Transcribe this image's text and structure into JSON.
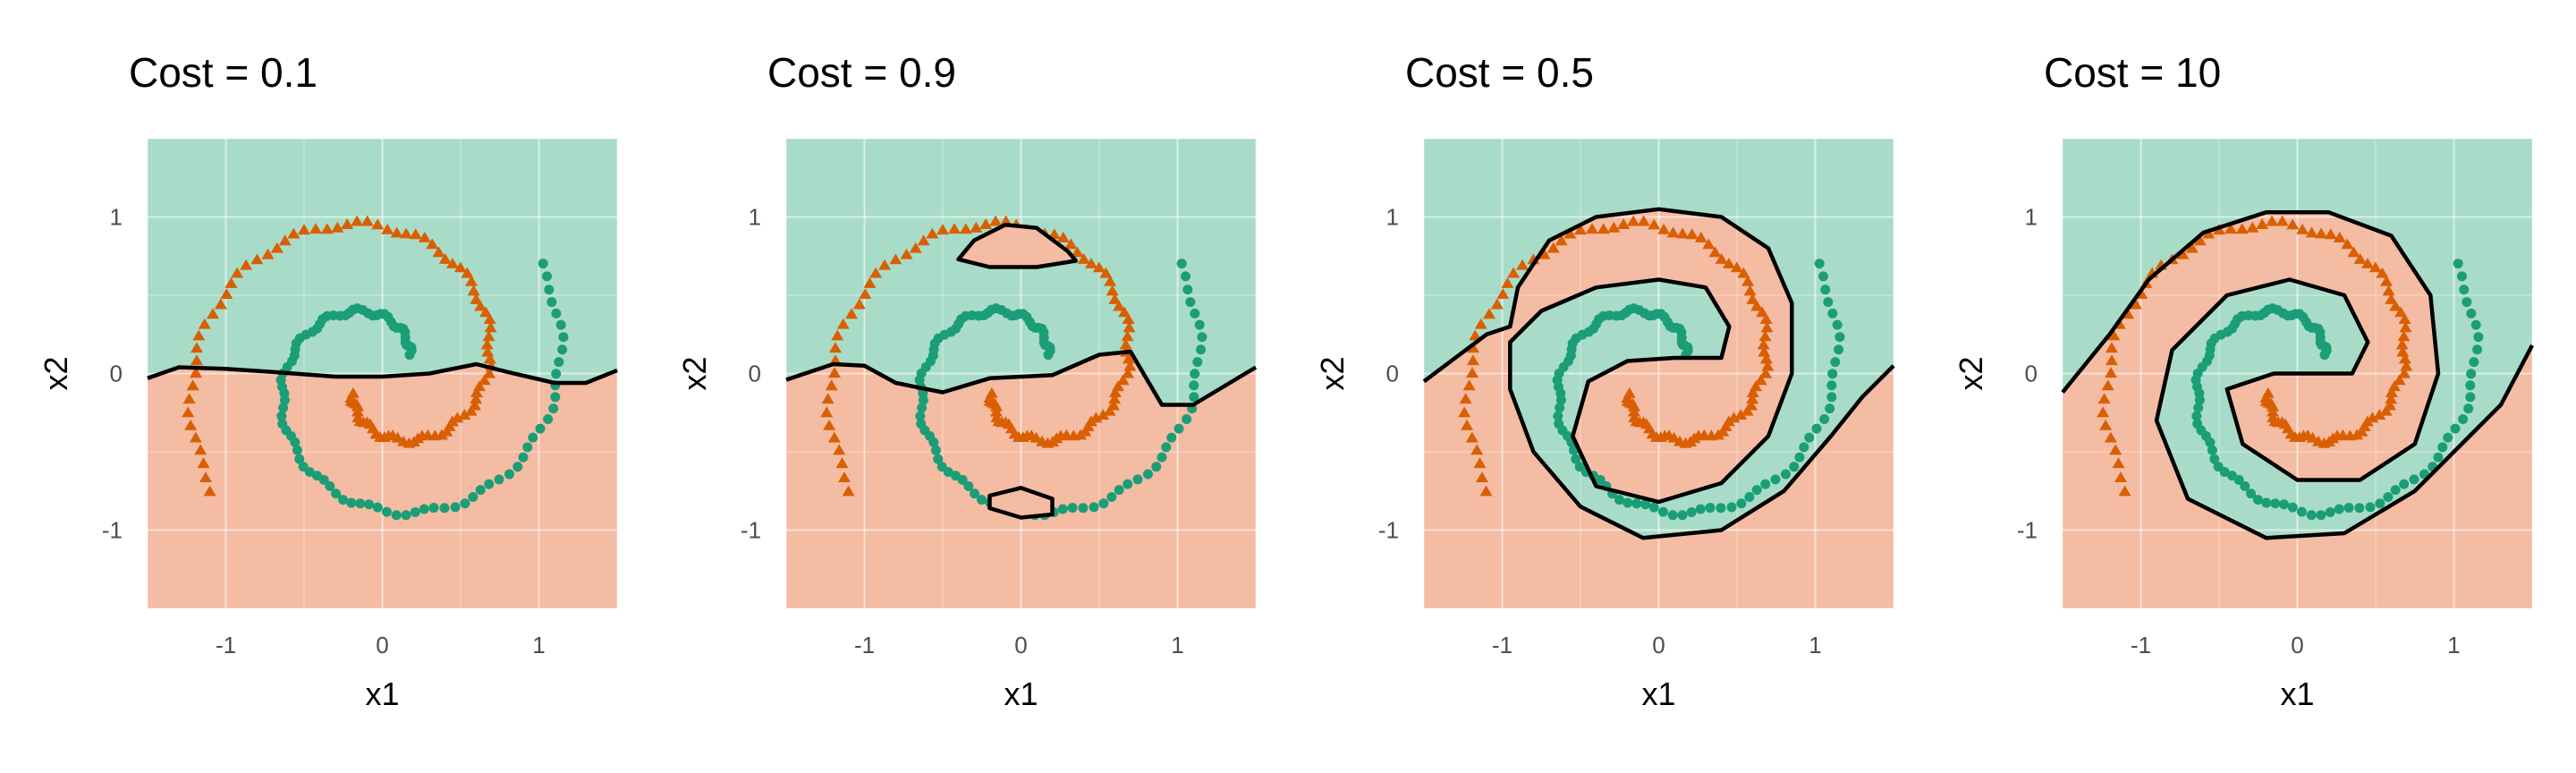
{
  "chart_data": [
    {
      "type": "scatter",
      "title": "Cost = 0.1",
      "xlabel": "x1",
      "ylabel": "x2",
      "xlim": [
        -1.5,
        1.5
      ],
      "ylim": [
        -1.5,
        1.5
      ],
      "x_ticks": [
        -1,
        0,
        1
      ],
      "y_ticks": [
        -1,
        0,
        1
      ],
      "grid": true,
      "classes": [
        {
          "marker": "circle",
          "color": "#1b9e77",
          "region_color": "#a9dcc8",
          "points": "spiral arm A (outer ring radius ~1.2, inner arm radius ~0.5)"
        },
        {
          "marker": "triangle",
          "color": "#d95f02",
          "region_color": "#f4bca3",
          "points": "spiral arm B (outer ring radius ~1.3, inner arm radius ~0.7)"
        }
      ],
      "decision_boundary": [
        [
          -1.5,
          -0.03
        ],
        [
          -1.3,
          0.04
        ],
        [
          -1.0,
          0.03
        ],
        [
          -0.7,
          0.01
        ],
        [
          -0.3,
          -0.02
        ],
        [
          0.0,
          -0.02
        ],
        [
          0.3,
          0.0
        ],
        [
          0.6,
          0.06
        ],
        [
          0.8,
          0.01
        ],
        [
          1.1,
          -0.06
        ],
        [
          1.3,
          -0.06
        ],
        [
          1.5,
          0.02
        ]
      ]
    },
    {
      "type": "scatter",
      "title": "Cost = 0.9",
      "xlabel": "x1",
      "ylabel": "x2",
      "xlim": [
        -1.5,
        1.5
      ],
      "ylim": [
        -1.5,
        1.5
      ],
      "x_ticks": [
        -1,
        0,
        1
      ],
      "y_ticks": [
        -1,
        0,
        1
      ],
      "grid": true,
      "decision_boundary": [
        [
          -1.5,
          -0.04
        ],
        [
          -1.2,
          0.06
        ],
        [
          -1.0,
          0.05
        ],
        [
          -0.8,
          -0.06
        ],
        [
          -0.5,
          -0.12
        ],
        [
          -0.2,
          -0.03
        ],
        [
          0.2,
          -0.01
        ],
        [
          0.5,
          0.12
        ],
        [
          0.7,
          0.14
        ],
        [
          0.9,
          -0.2
        ],
        [
          1.1,
          -0.2
        ],
        [
          1.3,
          -0.08
        ],
        [
          1.5,
          0.04
        ]
      ],
      "boundary_islands": [
        [
          [
            -0.4,
            0.73
          ],
          [
            -0.3,
            0.85
          ],
          [
            -0.1,
            0.95
          ],
          [
            0.1,
            0.93
          ],
          [
            0.3,
            0.78
          ],
          [
            0.35,
            0.72
          ],
          [
            0.1,
            0.68
          ],
          [
            -0.2,
            0.68
          ],
          [
            -0.4,
            0.73
          ]
        ],
        [
          [
            -0.2,
            -0.78
          ],
          [
            0.0,
            -0.73
          ],
          [
            0.2,
            -0.8
          ],
          [
            0.2,
            -0.9
          ],
          [
            0.0,
            -0.92
          ],
          [
            -0.2,
            -0.86
          ],
          [
            -0.2,
            -0.78
          ]
        ]
      ]
    },
    {
      "type": "scatter",
      "title": "Cost = 0.5",
      "xlabel": "x1",
      "ylabel": "x2",
      "xlim": [
        -1.5,
        1.5
      ],
      "ylim": [
        -1.5,
        1.5
      ],
      "x_ticks": [
        -1,
        0,
        1
      ],
      "y_ticks": [
        -1,
        0,
        1
      ],
      "grid": true,
      "decision_boundary": [
        [
          -1.5,
          -0.05
        ],
        [
          -1.3,
          0.1
        ],
        [
          -1.1,
          0.25
        ],
        [
          -0.95,
          0.3
        ],
        [
          -0.9,
          0.55
        ],
        [
          -0.7,
          0.85
        ],
        [
          -0.4,
          1.0
        ],
        [
          0.0,
          1.05
        ],
        [
          0.4,
          1.0
        ],
        [
          0.7,
          0.8
        ],
        [
          0.85,
          0.45
        ],
        [
          0.85,
          0.0
        ],
        [
          0.7,
          -0.4
        ],
        [
          0.4,
          -0.7
        ],
        [
          0.0,
          -0.82
        ],
        [
          -0.4,
          -0.72
        ],
        [
          -0.55,
          -0.4
        ],
        [
          -0.45,
          -0.05
        ],
        [
          -0.2,
          0.08
        ],
        [
          0.1,
          0.1
        ],
        [
          0.4,
          0.1
        ],
        [
          0.45,
          0.3
        ],
        [
          0.3,
          0.55
        ],
        [
          0.0,
          0.6
        ],
        [
          -0.4,
          0.55
        ],
        [
          -0.75,
          0.4
        ],
        [
          -0.95,
          0.2
        ],
        [
          -0.95,
          -0.1
        ],
        [
          -0.8,
          -0.5
        ],
        [
          -0.5,
          -0.85
        ],
        [
          -0.1,
          -1.05
        ],
        [
          0.4,
          -1.0
        ],
        [
          0.8,
          -0.75
        ],
        [
          1.1,
          -0.4
        ],
        [
          1.3,
          -0.15
        ],
        [
          1.5,
          0.05
        ]
      ]
    },
    {
      "type": "scatter",
      "title": "Cost = 10",
      "xlabel": "x1",
      "ylabel": "x2",
      "xlim": [
        -1.5,
        1.5
      ],
      "ylim": [
        -1.5,
        1.5
      ],
      "x_ticks": [
        -1,
        0,
        1
      ],
      "y_ticks": [
        -1,
        0,
        1
      ],
      "grid": true,
      "decision_boundary": [
        [
          -1.5,
          -0.12
        ],
        [
          -1.2,
          0.25
        ],
        [
          -0.95,
          0.6
        ],
        [
          -0.6,
          0.9
        ],
        [
          -0.2,
          1.03
        ],
        [
          0.2,
          1.03
        ],
        [
          0.6,
          0.88
        ],
        [
          0.85,
          0.5
        ],
        [
          0.9,
          0.0
        ],
        [
          0.75,
          -0.45
        ],
        [
          0.4,
          -0.68
        ],
        [
          0.0,
          -0.68
        ],
        [
          -0.35,
          -0.45
        ],
        [
          -0.45,
          -0.1
        ],
        [
          -0.15,
          0.0
        ],
        [
          0.35,
          0.0
        ],
        [
          0.45,
          0.2
        ],
        [
          0.3,
          0.5
        ],
        [
          -0.05,
          0.6
        ],
        [
          -0.45,
          0.5
        ],
        [
          -0.8,
          0.15
        ],
        [
          -0.9,
          -0.3
        ],
        [
          -0.7,
          -0.8
        ],
        [
          -0.2,
          -1.05
        ],
        [
          0.3,
          -1.02
        ],
        [
          0.75,
          -0.75
        ],
        [
          1.1,
          -0.4
        ],
        [
          1.3,
          -0.2
        ],
        [
          1.5,
          0.18
        ]
      ]
    }
  ]
}
